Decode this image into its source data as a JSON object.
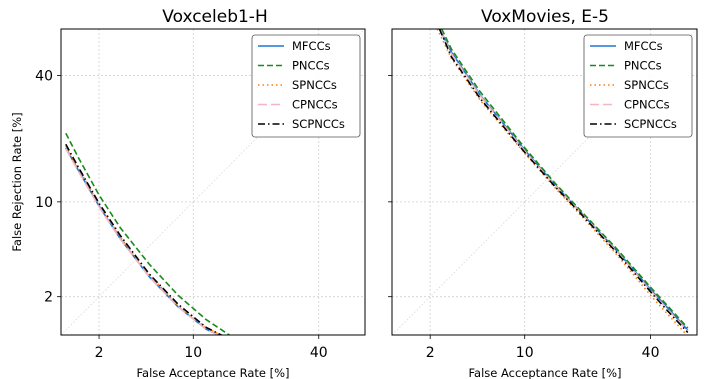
{
  "chart_data": [
    {
      "type": "line",
      "title": "Voxceleb1-H",
      "xlabel": "False Acceptance Rate [%]",
      "ylabel": "False Rejection Rate [%]",
      "scale": "normal-deviate (DET)",
      "xlim": [
        0.9,
        55
      ],
      "ylim": [
        0.9,
        55
      ],
      "xticks": [
        2,
        10,
        40
      ],
      "yticks": [
        2,
        10,
        40
      ],
      "grid": true,
      "diagonal": true,
      "legend": "top-right",
      "series": [
        {
          "name": "MFCCs",
          "color": "#1f77d4",
          "dash": "solid",
          "x": [
            1.0,
            1.3,
            2.0,
            3.0,
            5.0,
            8.0,
            12.0,
            14.5
          ],
          "y": [
            20.0,
            15.4,
            9.4,
            5.7,
            2.95,
            1.63,
            1.02,
            0.88
          ]
        },
        {
          "name": "PNCCs",
          "color": "#1a8a1a",
          "dash": "dashed",
          "x": [
            1.0,
            1.3,
            2.0,
            3.0,
            5.0,
            8.0,
            12.0,
            16.5
          ],
          "y": [
            23.5,
            18.0,
            11.0,
            6.8,
            3.7,
            2.05,
            1.25,
            0.88
          ]
        },
        {
          "name": "SPNCCs",
          "color": "#ff7f0e",
          "dash": "dotted",
          "x": [
            1.0,
            1.3,
            2.0,
            3.0,
            5.0,
            8.0,
            12.0,
            15.0
          ],
          "y": [
            20.5,
            15.8,
            9.6,
            5.85,
            3.05,
            1.68,
            1.05,
            0.88
          ]
        },
        {
          "name": "CPNCCs",
          "color": "#f4b6c2",
          "dash": "longdash",
          "x": [
            1.0,
            1.3,
            2.0,
            3.0,
            5.0,
            8.0,
            12.0,
            14.5
          ],
          "y": [
            19.8,
            15.2,
            9.3,
            5.65,
            2.95,
            1.63,
            1.02,
            0.88
          ]
        },
        {
          "name": "SCPNCCs",
          "color": "#000000",
          "dash": "dashdot",
          "x": [
            1.0,
            1.3,
            2.0,
            3.0,
            5.0,
            8.0,
            12.0,
            15.0
          ],
          "y": [
            20.8,
            16.0,
            9.8,
            6.0,
            3.1,
            1.72,
            1.06,
            0.88
          ]
        }
      ]
    },
    {
      "type": "line",
      "title": "VoxMovies, E-5",
      "xlabel": "False Acceptance Rate [%]",
      "ylabel": "",
      "scale": "normal-deviate (DET)",
      "xlim": [
        0.9,
        55
      ],
      "ylim": [
        0.9,
        55
      ],
      "xticks": [
        2,
        10,
        40
      ],
      "yticks": [
        2,
        10,
        40
      ],
      "grid": true,
      "diagonal": true,
      "legend": "top-right",
      "series": [
        {
          "name": "MFCCs",
          "color": "#1f77d4",
          "dash": "solid",
          "x": [
            2.4,
            3.0,
            5.0,
            10.0,
            15.0,
            20.0,
            30.0,
            40.0,
            45.0,
            52.0
          ],
          "y": [
            55.0,
            47.5,
            34.0,
            19.5,
            12.7,
            8.9,
            4.6,
            2.3,
            1.65,
            1.0
          ]
        },
        {
          "name": "PNCCs",
          "color": "#1a8a1a",
          "dash": "dashed",
          "x": [
            2.5,
            3.0,
            5.0,
            10.0,
            15.0,
            20.0,
            30.0,
            40.0,
            45.0,
            52.0
          ],
          "y": [
            55.0,
            48.5,
            35.0,
            20.0,
            13.0,
            9.1,
            4.75,
            2.4,
            1.72,
            1.05
          ]
        },
        {
          "name": "SPNCCs",
          "color": "#ff7f0e",
          "dash": "dotted",
          "x": [
            2.3,
            3.0,
            5.0,
            10.0,
            15.0,
            20.0,
            30.0,
            40.0,
            45.0,
            52.0
          ],
          "y": [
            55.0,
            45.5,
            32.5,
            18.8,
            12.2,
            8.5,
            4.3,
            2.05,
            1.45,
            0.88
          ]
        },
        {
          "name": "CPNCCs",
          "color": "#f4b6c2",
          "dash": "longdash",
          "x": [
            2.4,
            3.0,
            5.0,
            10.0,
            15.0,
            20.0,
            30.0,
            40.0,
            45.0,
            52.0
          ],
          "y": [
            55.0,
            47.0,
            33.8,
            19.3,
            12.6,
            8.8,
            4.55,
            2.25,
            1.6,
            0.98
          ]
        },
        {
          "name": "SCPNCCs",
          "color": "#000000",
          "dash": "dashdot",
          "x": [
            2.4,
            3.0,
            5.0,
            10.0,
            15.0,
            20.0,
            30.0,
            40.0,
            45.0,
            52.0
          ],
          "y": [
            55.0,
            46.0,
            33.0,
            19.0,
            12.4,
            8.7,
            4.45,
            2.2,
            1.55,
            0.95
          ]
        }
      ]
    }
  ]
}
